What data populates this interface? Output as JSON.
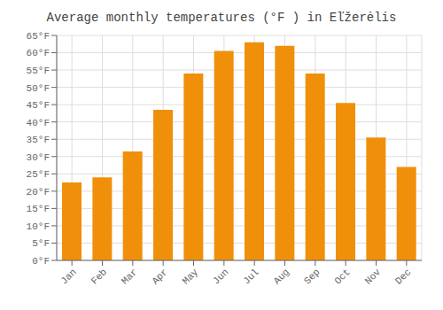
{
  "chart_data": {
    "type": "bar",
    "title": "Average monthly temperatures (°F ) in Eľžerėlis",
    "categories": [
      "Jan",
      "Feb",
      "Mar",
      "Apr",
      "May",
      "Jun",
      "Jul",
      "Aug",
      "Sep",
      "Oct",
      "Nov",
      "Dec"
    ],
    "values": [
      22.5,
      24.0,
      31.5,
      43.5,
      54.0,
      60.5,
      63.0,
      62.0,
      54.0,
      45.5,
      35.5,
      27.0
    ],
    "color": "#F0900A",
    "ylim": [
      0,
      65
    ],
    "yticks": [
      {
        "value": 0,
        "label": "0°F"
      },
      {
        "value": 5,
        "label": "5°F"
      },
      {
        "value": 10,
        "label": "10°F"
      },
      {
        "value": 15,
        "label": "15°F"
      },
      {
        "value": 20,
        "label": "20°F"
      },
      {
        "value": 25,
        "label": "25°F"
      },
      {
        "value": 30,
        "label": "30°F"
      },
      {
        "value": 35,
        "label": "35°F"
      },
      {
        "value": 40,
        "label": "40°F"
      },
      {
        "value": 45,
        "label": "45°F"
      },
      {
        "value": 50,
        "label": "50°F"
      },
      {
        "value": 55,
        "label": "55°F"
      },
      {
        "value": 60,
        "label": "60°F"
      },
      {
        "value": 65,
        "label": "65°F"
      }
    ],
    "grid": true
  }
}
